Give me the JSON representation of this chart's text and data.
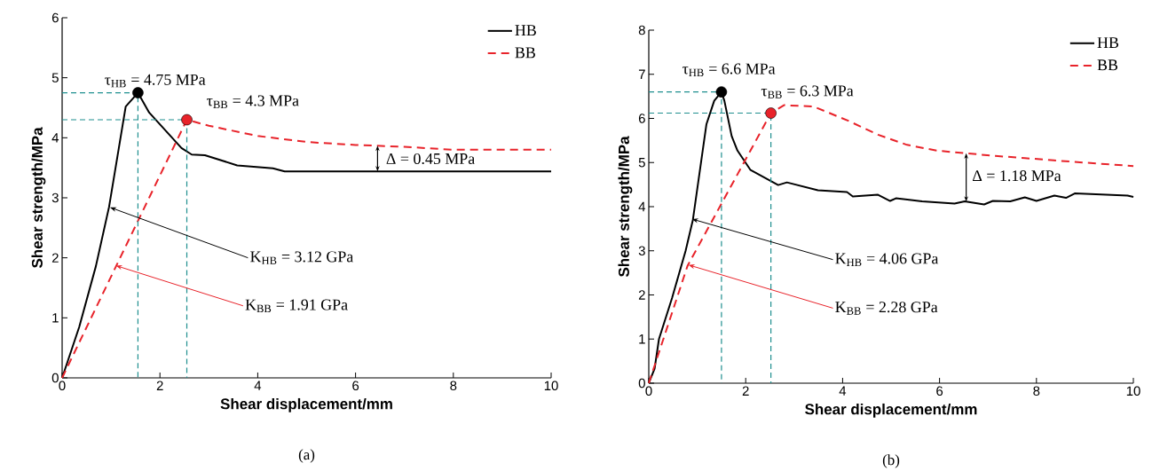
{
  "chart_data": [
    {
      "type": "line",
      "xlabel": "Shear displacement/mm",
      "ylabel": "Shear strength/MPa",
      "xlim": [
        0,
        10
      ],
      "ylim": [
        0,
        6
      ],
      "xticks": [
        0,
        2,
        4,
        6,
        8,
        10
      ],
      "yticks": [
        0,
        1,
        2,
        3,
        4,
        5,
        6
      ],
      "legend": "top right",
      "series": [
        {
          "name": "HB",
          "color": "#000000",
          "line_style": "solid",
          "x": [
            0,
            0.35,
            0.69,
            0.96,
            1.3,
            1.55,
            1.78,
            2.44,
            2.65,
            2.92,
            3.58,
            4.31,
            4.55,
            10
          ],
          "values": [
            0,
            0.85,
            1.86,
            2.85,
            4.52,
            4.75,
            4.42,
            3.83,
            3.72,
            3.71,
            3.54,
            3.49,
            3.44,
            3.44
          ]
        },
        {
          "name": "BB",
          "color": "#e8232a",
          "line_style": "dashed",
          "x": [
            0,
            2.55,
            3,
            4,
            5,
            6,
            7,
            8,
            9,
            10
          ],
          "values": [
            0,
            4.3,
            4.2,
            4.03,
            3.93,
            3.88,
            3.85,
            3.8,
            3.8,
            3.8
          ]
        },
        {
          "type": "line",
          "color": "#1f8f8f",
          "line_style": "dashed",
          "x": [
            0,
            1.55,
            1.55
          ],
          "values": [
            4.75,
            4.75,
            0
          ]
        },
        {
          "type": "line",
          "color": "#1f8f8f",
          "line_style": "dashed",
          "x": [
            0,
            2.55,
            2.55
          ],
          "values": [
            4.3,
            4.3,
            0
          ]
        },
        {
          "type": "scatter",
          "marker": "circle",
          "x": [
            1.55,
            2.55
          ],
          "values": [
            4.75,
            4.3
          ],
          "colors": [
            "#000000",
            "#e8232a"
          ]
        }
      ],
      "annotations": [
        {
          "text": "τ$_{HB}$ = 4.75 MPa",
          "x": 1.55,
          "y": 4.75
        },
        {
          "text": "τ$_{BB}$ = 4.3 MPa",
          "x": 2.55,
          "y": 4.3
        },
        {
          "text": "Δ = 0.45 MPa",
          "x": 6.45,
          "y": 3.87
        },
        {
          "text": "K$_{HB}$ = 3.12 GPa",
          "x": 0.98,
          "y": 2.84
        },
        {
          "text": "K$_{BB}$ = 1.91 GPa",
          "x": 1.1,
          "y": 1.87
        },
        "(a)"
      ]
    },
    {
      "type": "line",
      "xlabel": "Shear displacement/mm",
      "ylabel": "Shear strength/MPa",
      "xlim": [
        0,
        10
      ],
      "ylim": [
        0,
        8
      ],
      "xticks": [
        0,
        2,
        4,
        6,
        8,
        10
      ],
      "yticks": [
        0,
        1,
        2,
        3,
        4,
        5,
        6,
        7,
        8
      ],
      "legend": "top right",
      "series": [
        {
          "name": "HB",
          "color": "#000000",
          "line_style": "solid",
          "x": [
            0,
            0.12,
            0.21,
            0.48,
            0.76,
            0.91,
            1.19,
            1.35,
            1.5,
            1.56,
            1.71,
            1.83,
            2.1,
            2.67,
            2.85,
            3.49,
            4.09,
            4.21,
            4.73,
            4.98,
            5.1,
            5.64,
            6.31,
            6.52,
            6.92,
            7.1,
            7.46,
            7.76,
            8.0,
            8.37,
            8.61,
            8.79,
            9.88,
            10
          ],
          "values": [
            0,
            0.33,
            1.0,
            1.93,
            3.0,
            3.7,
            5.87,
            6.4,
            6.6,
            6.4,
            5.6,
            5.27,
            4.83,
            4.49,
            4.55,
            4.37,
            4.33,
            4.23,
            4.27,
            4.13,
            4.19,
            4.12,
            4.07,
            4.12,
            4.05,
            4.13,
            4.12,
            4.21,
            4.13,
            4.25,
            4.2,
            4.3,
            4.25,
            4.22
          ]
        },
        {
          "name": "BB",
          "color": "#e8232a",
          "line_style": "dashed",
          "x": [
            0,
            0.8,
            2.52,
            2.79,
            3.4,
            4.13,
            4.73,
            5.33,
            5.94,
            6.55,
            7.15,
            7.76,
            8.36,
            8.97,
            10
          ],
          "values": [
            0,
            2.66,
            6.12,
            6.3,
            6.27,
            5.94,
            5.63,
            5.4,
            5.27,
            5.21,
            5.15,
            5.1,
            5.05,
            5.0,
            4.92
          ]
        },
        {
          "type": "line",
          "color": "#1f8f8f",
          "line_style": "dashed",
          "x": [
            0,
            1.5,
            1.5
          ],
          "values": [
            6.6,
            6.6,
            0
          ]
        },
        {
          "type": "line",
          "color": "#1f8f8f",
          "line_style": "dashed",
          "x": [
            0,
            2.52,
            2.52
          ],
          "values": [
            6.12,
            6.12,
            0
          ]
        },
        {
          "type": "scatter",
          "marker": "circle",
          "x": [
            1.5,
            2.52
          ],
          "values": [
            6.6,
            6.12
          ],
          "colors": [
            "#000000",
            "#e8232a"
          ]
        }
      ],
      "annotations": [
        {
          "text": "τ$_{HB}$ = 6.6 MPa",
          "x": 1.5,
          "y": 6.6
        },
        {
          "text": "τ$_{BB}$ = 6.3 MPa",
          "x": 2.52,
          "y": 6.12
        },
        {
          "text": "Δ = 1.18 MPa",
          "x": 6.55,
          "y": 5.21
        },
        {
          "text": "K$_{HB}$ = 4.06 GPa",
          "x": 0.89,
          "y": 3.72
        },
        {
          "text": "K$_{BB}$ = 2.28 GPa",
          "x": 0.82,
          "y": 2.68
        },
        "(b)"
      ]
    }
  ]
}
